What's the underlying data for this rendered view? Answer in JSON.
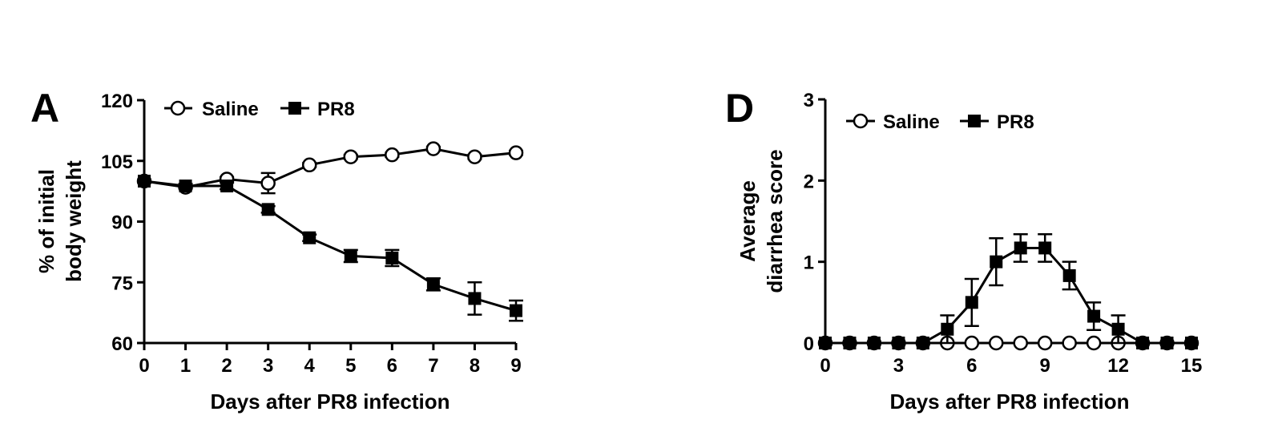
{
  "chart_data": [
    {
      "type": "line",
      "panel": "A",
      "title": "",
      "xlabel": "Days after PR8 infection",
      "ylabel": [
        "% of initial",
        "body weight"
      ],
      "xlim": [
        0,
        9
      ],
      "ylim": [
        60,
        120
      ],
      "xticks": [
        0,
        1,
        2,
        3,
        4,
        5,
        6,
        7,
        8,
        9
      ],
      "yticks": [
        60,
        75,
        90,
        105,
        120
      ],
      "legend": "top-left",
      "grid": false,
      "series": [
        {
          "name": "Saline",
          "marker": "circle-open",
          "x": [
            0,
            1,
            2,
            3,
            4,
            5,
            6,
            7,
            8,
            9
          ],
          "y": [
            100,
            98.5,
            100.5,
            99.5,
            104,
            106,
            106.5,
            108,
            106,
            107
          ],
          "err": [
            0,
            0,
            0.5,
            2.5,
            0.5,
            0.5,
            0.5,
            0.5,
            0.5,
            0.5
          ]
        },
        {
          "name": "PR8",
          "marker": "square-filled",
          "x": [
            0,
            1,
            2,
            3,
            4,
            5,
            6,
            7,
            8,
            9
          ],
          "y": [
            100,
            98.8,
            98.8,
            93,
            86,
            81.5,
            81,
            74.5,
            71,
            68
          ],
          "err": [
            0,
            0.5,
            0.8,
            0.8,
            0.8,
            1.5,
            2,
            1.5,
            4,
            2.5
          ]
        }
      ]
    },
    {
      "type": "line",
      "panel": "D",
      "title": "",
      "xlabel": "Days after PR8 infection",
      "ylabel": [
        "Average",
        "diarrhea score"
      ],
      "xlim": [
        0,
        15
      ],
      "ylim": [
        0,
        3
      ],
      "xticks": [
        0,
        3,
        6,
        9,
        12,
        15
      ],
      "yticks": [
        0,
        1,
        2,
        3
      ],
      "legend": "top-left",
      "grid": false,
      "series": [
        {
          "name": "Saline",
          "marker": "circle-open",
          "x": [
            0,
            1,
            2,
            3,
            4,
            5,
            6,
            7,
            8,
            9,
            10,
            11,
            12,
            13,
            14,
            15
          ],
          "y": [
            0,
            0,
            0,
            0,
            0,
            0,
            0,
            0,
            0,
            0,
            0,
            0,
            0,
            0,
            0,
            0
          ],
          "err": [
            0,
            0,
            0,
            0,
            0,
            0,
            0,
            0,
            0,
            0,
            0,
            0,
            0,
            0,
            0,
            0
          ]
        },
        {
          "name": "PR8",
          "marker": "square-filled",
          "x": [
            0,
            1,
            2,
            3,
            4,
            5,
            6,
            7,
            8,
            9,
            10,
            11,
            12,
            13,
            14,
            15
          ],
          "y": [
            0,
            0,
            0,
            0,
            0,
            0.17,
            0.5,
            1.0,
            1.17,
            1.17,
            0.83,
            0.33,
            0.17,
            0,
            0,
            0
          ],
          "err": [
            0,
            0,
            0,
            0,
            0,
            0.17,
            0.29,
            0.29,
            0.17,
            0.17,
            0.17,
            0.17,
            0.17,
            0,
            0,
            0
          ]
        }
      ]
    }
  ]
}
